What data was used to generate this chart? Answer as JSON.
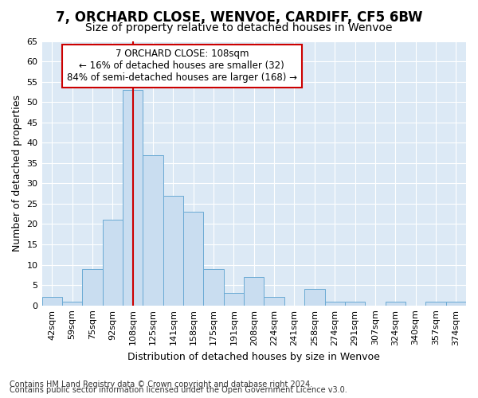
{
  "title1": "7, ORCHARD CLOSE, WENVOE, CARDIFF, CF5 6BW",
  "title2": "Size of property relative to detached houses in Wenvoe",
  "xlabel": "Distribution of detached houses by size in Wenvoe",
  "ylabel": "Number of detached properties",
  "categories": [
    "42sqm",
    "59sqm",
    "75sqm",
    "92sqm",
    "108sqm",
    "125sqm",
    "141sqm",
    "158sqm",
    "175sqm",
    "191sqm",
    "208sqm",
    "224sqm",
    "241sqm",
    "258sqm",
    "274sqm",
    "291sqm",
    "307sqm",
    "324sqm",
    "340sqm",
    "357sqm",
    "374sqm"
  ],
  "values": [
    2,
    1,
    9,
    21,
    53,
    37,
    27,
    23,
    9,
    3,
    7,
    2,
    0,
    4,
    1,
    1,
    0,
    1,
    0,
    1,
    1
  ],
  "bar_color": "#c9ddf0",
  "bar_edge_color": "#6aaad4",
  "highlight_index": 4,
  "highlight_line_color": "#cc0000",
  "ylim": [
    0,
    65
  ],
  "yticks": [
    0,
    5,
    10,
    15,
    20,
    25,
    30,
    35,
    40,
    45,
    50,
    55,
    60,
    65
  ],
  "annotation_title": "7 ORCHARD CLOSE: 108sqm",
  "annotation_line1": "← 16% of detached houses are smaller (32)",
  "annotation_line2": "84% of semi-detached houses are larger (168) →",
  "annotation_box_color": "#ffffff",
  "annotation_box_edge": "#cc0000",
  "footer1": "Contains HM Land Registry data © Crown copyright and database right 2024.",
  "footer2": "Contains public sector information licensed under the Open Government Licence v3.0.",
  "fig_bg_color": "#ffffff",
  "plot_bg_color": "#dce9f5",
  "grid_color": "#ffffff",
  "title1_fontsize": 12,
  "title2_fontsize": 10,
  "tick_fontsize": 8,
  "ylabel_fontsize": 9,
  "xlabel_fontsize": 9,
  "footer_fontsize": 7
}
